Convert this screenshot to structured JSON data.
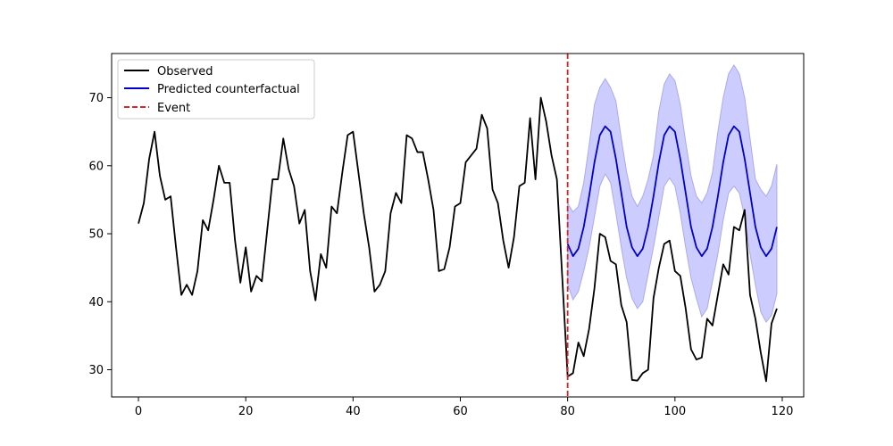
{
  "chart_data": {
    "type": "line",
    "title": "",
    "xlabel": "",
    "ylabel": "",
    "xlim": [
      -5,
      124
    ],
    "ylim": [
      26,
      76.5
    ],
    "xticks": [
      0,
      20,
      40,
      60,
      80,
      100,
      120
    ],
    "yticks": [
      30,
      40,
      50,
      60,
      70
    ],
    "grid": false,
    "legend_position": "top-left",
    "event_x": 80,
    "colors": {
      "observed": "#000000",
      "predicted": "#0000cc",
      "band": "#ccccff",
      "band_edge": "#aaaaee",
      "event": "#d62728"
    },
    "legend": {
      "observed": "Observed",
      "predicted": "Predicted counterfactual",
      "event": "Event"
    },
    "series": [
      {
        "id": "observed",
        "x": [
          0,
          1,
          2,
          3,
          4,
          5,
          6,
          7,
          8,
          9,
          10,
          11,
          12,
          13,
          14,
          15,
          16,
          17,
          18,
          19,
          20,
          21,
          22,
          23,
          24,
          25,
          26,
          27,
          28,
          29,
          30,
          31,
          32,
          33,
          34,
          35,
          36,
          37,
          38,
          39,
          40,
          41,
          42,
          43,
          44,
          45,
          46,
          47,
          48,
          49,
          50,
          51,
          52,
          53,
          54,
          55,
          56,
          57,
          58,
          59,
          60,
          61,
          62,
          63,
          64,
          65,
          66,
          67,
          68,
          69,
          70,
          71,
          72,
          73,
          74,
          75,
          76,
          77,
          78,
          79,
          80,
          81,
          82,
          83,
          84,
          85,
          86,
          87,
          88,
          89,
          90,
          91,
          92,
          93,
          94,
          95,
          96,
          97,
          98,
          99,
          100,
          101,
          102,
          103,
          104,
          105,
          106,
          107,
          108,
          109,
          110,
          111,
          112,
          113,
          114,
          115,
          116,
          117,
          118,
          119
        ],
        "y": [
          51.5,
          54.5,
          61,
          65,
          58.5,
          55,
          55.5,
          48,
          41,
          42.5,
          41,
          44.5,
          52,
          50.5,
          55,
          60,
          57.5,
          57.5,
          49,
          42.8,
          48,
          41.5,
          43.8,
          43,
          50.5,
          58,
          58,
          64,
          59.5,
          57,
          51.5,
          53.5,
          44.5,
          40.2,
          47,
          45,
          54,
          53,
          59,
          64.5,
          65,
          59,
          53,
          48,
          41.5,
          42.5,
          44.5,
          53,
          56,
          54.5,
          64.5,
          64,
          62,
          62,
          58,
          53.5,
          44.5,
          44.8,
          48,
          54,
          54.5,
          60.5,
          61.5,
          62.5,
          67.5,
          65.5,
          56.5,
          54.5,
          49,
          45,
          49.5,
          57,
          57.5,
          67,
          58,
          70,
          66.5,
          61.5,
          58,
          43.5,
          29,
          29.5,
          34,
          32,
          36,
          42,
          50,
          49.5,
          46,
          45.5,
          39.5,
          37,
          28.5,
          28.4,
          29.5,
          30,
          40.5,
          45,
          48.5,
          49,
          44.5,
          43.8,
          39,
          33,
          31.5,
          31.8,
          37.5,
          36.5,
          41,
          45.5,
          44,
          51,
          50.5,
          53.5,
          41,
          37.5,
          32.5,
          28.3,
          36.8,
          39
        ]
      },
      {
        "id": "predicted",
        "x": [
          80,
          81,
          82,
          83,
          84,
          85,
          86,
          87,
          88,
          89,
          90,
          91,
          92,
          93,
          94,
          95,
          96,
          97,
          98,
          99,
          100,
          101,
          102,
          103,
          104,
          105,
          106,
          107,
          108,
          109,
          110,
          111,
          112,
          113,
          114,
          115,
          116,
          117,
          118,
          119
        ],
        "y": [
          48.5,
          46.7,
          47.8,
          51,
          55.5,
          60.5,
          64.5,
          65.8,
          65,
          61,
          56,
          51,
          48,
          46.7,
          47.8,
          51,
          55.5,
          60.5,
          64.5,
          65.8,
          65,
          61,
          56,
          51,
          48,
          46.7,
          47.8,
          51,
          55.5,
          60.5,
          64.5,
          65.8,
          65,
          61,
          56,
          51,
          48,
          46.7,
          47.8,
          51
        ],
        "upper": [
          54.5,
          53.2,
          54,
          57.5,
          63,
          69,
          71.5,
          72.8,
          71.5,
          69.5,
          64,
          59,
          55.5,
          54,
          55.5,
          58,
          61.5,
          68,
          72,
          73.5,
          72.5,
          69,
          63.5,
          58.5,
          55.5,
          54.5,
          56,
          59,
          65,
          70,
          73.5,
          74.8,
          73.5,
          70,
          64,
          58,
          56.5,
          55.5,
          57,
          60.2
        ],
        "lower": [
          42.5,
          40.3,
          41.5,
          44.5,
          48,
          52.5,
          57,
          58.8,
          57.5,
          53,
          48,
          43.5,
          40.5,
          39,
          40,
          44,
          48,
          52.5,
          57,
          58.2,
          57,
          53,
          48,
          43.5,
          40.5,
          37.8,
          39,
          43,
          47,
          52,
          56,
          57,
          56,
          52.5,
          47,
          42.5,
          38.5,
          37,
          38,
          41.2
        ]
      }
    ]
  }
}
